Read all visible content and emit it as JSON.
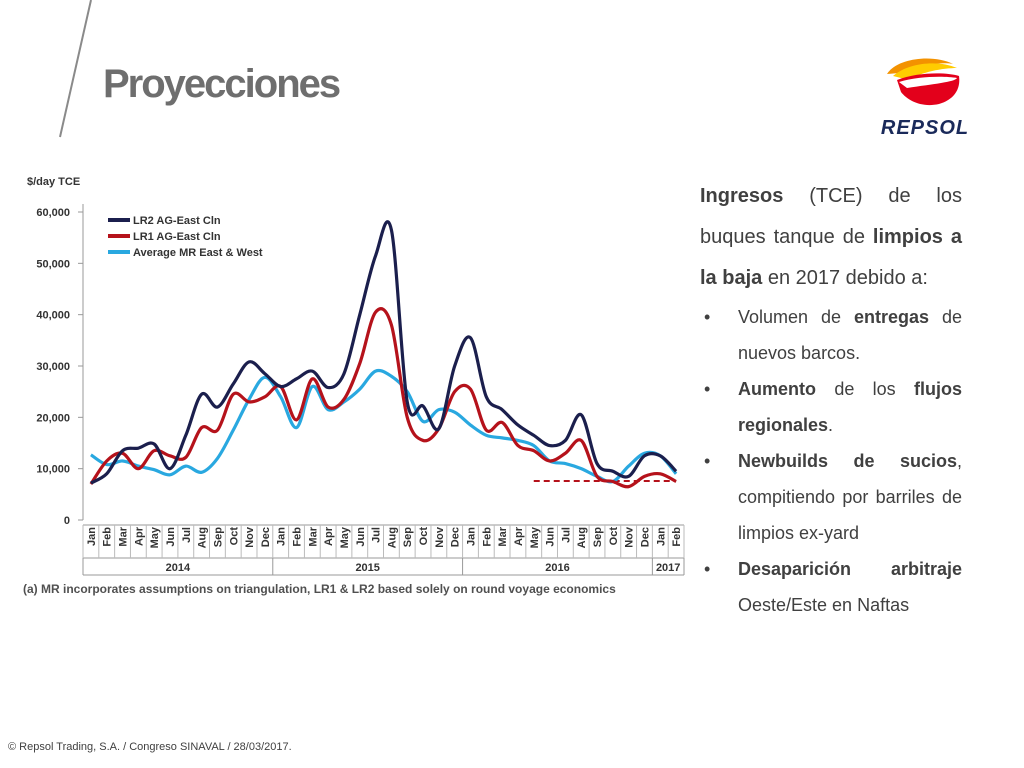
{
  "slide": {
    "title": "Proyecciones",
    "logo_text": "REPSOL",
    "footer": "© Repsol Trading, S.A. /  Congreso SINAVAL / 28/03/2017."
  },
  "text": {
    "intro": [
      {
        "t": "Ingresos",
        "b": true
      },
      {
        "t": " (TCE) de los buques tanque de ",
        "b": false
      },
      {
        "t": "limpios a la baja",
        "b": true
      },
      {
        "t": " en 2017 debido a:",
        "b": false
      }
    ],
    "bullets": [
      [
        {
          "t": "Volumen de ",
          "b": false
        },
        {
          "t": "entregas",
          "b": true
        },
        {
          "t": " de nuevos barcos.",
          "b": false
        }
      ],
      [
        {
          "t": "Aumento",
          "b": true
        },
        {
          "t": " de los ",
          "b": false
        },
        {
          "t": "flujos regionales",
          "b": true
        },
        {
          "t": ".",
          "b": false
        }
      ],
      [
        {
          "t": "Newbuilds de sucios",
          "b": true
        },
        {
          "t": ", compitiendo por barriles de limpios ex-yard",
          "b": false
        }
      ],
      [
        {
          "t": "Desaparición arbitraje",
          "b": true
        },
        {
          "t": " Oeste/Este en Naftas",
          "b": false
        }
      ]
    ]
  },
  "chart_data": {
    "type": "line",
    "ylabel": "$/day TCE",
    "ylim": [
      0,
      60000
    ],
    "yticks": [
      0,
      10000,
      20000,
      30000,
      40000,
      50000,
      60000
    ],
    "ytick_labels": [
      "0",
      "10,000",
      "20,000",
      "30,000",
      "40,000",
      "50,000",
      "60,000"
    ],
    "categories": [
      "Jan",
      "Feb",
      "Mar",
      "Apr",
      "May",
      "Jun",
      "Jul",
      "Aug",
      "Sep",
      "Oct",
      "Nov",
      "Dec",
      "Jan",
      "Feb",
      "Mar",
      "Apr",
      "May",
      "Jun",
      "Jul",
      "Aug",
      "Sep",
      "Oct",
      "Nov",
      "Dec",
      "Jan",
      "Feb",
      "Mar",
      "Apr",
      "May",
      "Jun",
      "Jul",
      "Aug",
      "Sep",
      "Oct",
      "Nov",
      "Dec",
      "Jan",
      "Feb"
    ],
    "years": [
      {
        "label": "2014",
        "months": 12
      },
      {
        "label": "2015",
        "months": 12
      },
      {
        "label": "2016",
        "months": 12
      },
      {
        "label": "2017",
        "months": 2
      }
    ],
    "legend_position": "top-left",
    "grid": false,
    "series": [
      {
        "name": "LR2 AG-East Cln",
        "color": "#1b1f4d",
        "values": [
          7200,
          9000,
          13500,
          14000,
          14800,
          10000,
          16500,
          24500,
          22000,
          26500,
          30800,
          28500,
          26000,
          27500,
          29000,
          25800,
          28500,
          40000,
          51500,
          56500,
          23000,
          22200,
          17800,
          30000,
          35500,
          24000,
          21500,
          18500,
          16500,
          14500,
          15500,
          20500,
          11000,
          9500,
          8500,
          12500,
          12500,
          9500
        ]
      },
      {
        "name": "LR1 AG-East Cln",
        "color": "#b5121b",
        "values": [
          7000,
          11500,
          13000,
          10000,
          13500,
          12500,
          12200,
          18000,
          17500,
          24500,
          23000,
          24000,
          26000,
          19500,
          27500,
          22000,
          23500,
          30500,
          40500,
          38000,
          20000,
          15500,
          17800,
          25000,
          25500,
          17500,
          19000,
          14500,
          13500,
          11500,
          13000,
          15500,
          8500,
          7500,
          6500,
          8500,
          9000,
          7500
        ]
      },
      {
        "name": "Average MR East & West",
        "color": "#29a8e0",
        "values": [
          12700,
          10800,
          11500,
          10500,
          9800,
          8800,
          10500,
          9300,
          12000,
          17500,
          23500,
          27800,
          24000,
          18000,
          26000,
          21500,
          23000,
          25500,
          29000,
          28000,
          25000,
          19200,
          21500,
          21000,
          18500,
          16500,
          16000,
          15500,
          14500,
          11500,
          11000,
          10000,
          8500,
          7500,
          10500,
          13000,
          12500,
          9000
        ]
      }
    ],
    "projection": {
      "color": "#b5121b",
      "from_index": 28,
      "to_index": 37,
      "value": 7600
    },
    "annotation": "(a) MR incorporates assumptions on triangulation,  LR1 & LR2 based solely on round voyage economics"
  }
}
